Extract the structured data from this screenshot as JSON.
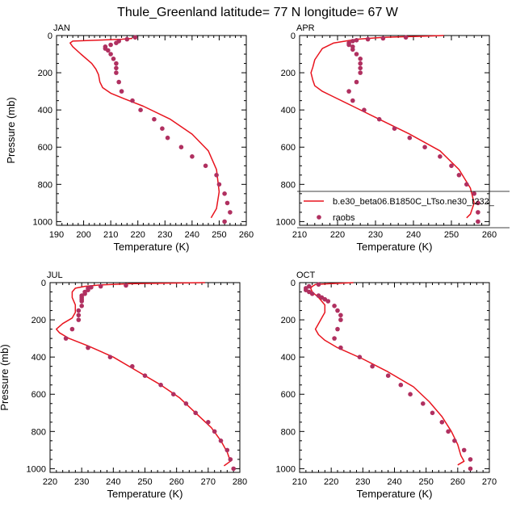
{
  "title": "Thule_Greenland  latitude= 77 N longitude= 67 W",
  "colors": {
    "model": "#e8141e",
    "obs": "#b03060",
    "axis": "#000000"
  },
  "legend": {
    "model_label": "b.e30_beta06.B1850C_LTso.ne30_t232_",
    "obs_label": "raobs",
    "placement": "lower-right of APR panel"
  },
  "chart_data": [
    {
      "type": "line",
      "panel": "JAN",
      "xlabel": "Temperature (K)",
      "ylabel": "Pressure (mb)",
      "xlim": [
        190,
        260
      ],
      "ylim": [
        1000,
        0
      ],
      "xticks": [
        190,
        200,
        210,
        220,
        230,
        240,
        250,
        260
      ],
      "yticks": [
        0,
        200,
        400,
        600,
        800,
        1000
      ],
      "series": [
        {
          "kind": "model",
          "points": [
            [
              218,
              15
            ],
            [
              214,
              20
            ],
            [
              205,
              25
            ],
            [
              196,
              30
            ],
            [
              195,
              40
            ],
            [
              196,
              60
            ],
            [
              199,
              100
            ],
            [
              203,
              150
            ],
            [
              204.5,
              180
            ],
            [
              205.5,
              210
            ],
            [
              206,
              250
            ],
            [
              207,
              280
            ],
            [
              210,
              310
            ],
            [
              215,
              340
            ],
            [
              222,
              380
            ],
            [
              232,
              450
            ],
            [
              240,
              530
            ],
            [
              246,
              620
            ],
            [
              249,
              720
            ],
            [
              250,
              840
            ],
            [
              249,
              930
            ],
            [
              247,
              980
            ]
          ]
        },
        {
          "kind": "obs",
          "points": [
            [
              219,
              10
            ],
            [
              216,
              20
            ],
            [
              213,
              30
            ],
            [
              212,
              40
            ],
            [
              210,
              50
            ],
            [
              208,
              60
            ],
            [
              208,
              70
            ],
            [
              209,
              80
            ],
            [
              210,
              100
            ],
            [
              211,
              125
            ],
            [
              212,
              150
            ],
            [
              212,
              175
            ],
            [
              212,
              200
            ],
            [
              213,
              250
            ],
            [
              214,
              300
            ],
            [
              218,
              350
            ],
            [
              221,
              400
            ],
            [
              226,
              450
            ],
            [
              229,
              500
            ],
            [
              231,
              550
            ],
            [
              236,
              600
            ],
            [
              240,
              650
            ],
            [
              245,
              700
            ],
            [
              249,
              750
            ],
            [
              250,
              800
            ],
            [
              252,
              850
            ],
            [
              253,
              900
            ],
            [
              254,
              950
            ],
            [
              252,
              1000
            ]
          ]
        }
      ]
    },
    {
      "type": "line",
      "panel": "APR",
      "xlabel": "Temperature (K)",
      "ylabel": "",
      "xlim": [
        210,
        260
      ],
      "ylim": [
        1000,
        0
      ],
      "xticks": [
        210,
        220,
        230,
        240,
        250,
        260
      ],
      "yticks": [
        0,
        200,
        400,
        600,
        800,
        1000
      ],
      "series": [
        {
          "kind": "model",
          "points": [
            [
              248,
              0
            ],
            [
              240,
              5
            ],
            [
              232,
              10
            ],
            [
              225,
              20
            ],
            [
              219,
              40
            ],
            [
              216,
              70
            ],
            [
              215,
              100
            ],
            [
              214,
              130
            ],
            [
              213.5,
              170
            ],
            [
              213,
              200
            ],
            [
              213.5,
              240
            ],
            [
              214,
              270
            ],
            [
              216,
              300
            ],
            [
              219,
              330
            ],
            [
              224,
              380
            ],
            [
              231,
              450
            ],
            [
              239,
              530
            ],
            [
              247,
              620
            ],
            [
              252,
              720
            ],
            [
              255,
              820
            ],
            [
              256,
              900
            ],
            [
              255,
              960
            ],
            [
              254,
              980
            ]
          ]
        },
        {
          "kind": "obs",
          "points": [
            [
              238,
              10
            ],
            [
              232,
              15
            ],
            [
              228,
              20
            ],
            [
              225,
              25
            ],
            [
              224,
              30
            ],
            [
              223,
              40
            ],
            [
              223,
              50
            ],
            [
              224,
              60
            ],
            [
              224,
              75
            ],
            [
              225,
              100
            ],
            [
              226,
              125
            ],
            [
              226,
              150
            ],
            [
              226,
              175
            ],
            [
              226,
              200
            ],
            [
              225,
              250
            ],
            [
              223,
              300
            ],
            [
              224,
              350
            ],
            [
              227,
              400
            ],
            [
              231,
              450
            ],
            [
              235,
              500
            ],
            [
              239,
              550
            ],
            [
              243,
              600
            ],
            [
              247,
              650
            ],
            [
              250,
              700
            ],
            [
              252,
              750
            ],
            [
              254,
              800
            ],
            [
              256,
              850
            ],
            [
              257,
              900
            ],
            [
              257,
              950
            ],
            [
              257,
              1000
            ]
          ]
        }
      ]
    },
    {
      "type": "line",
      "panel": "JUL",
      "xlabel": "Temperature (K)",
      "ylabel": "Pressure (mb)",
      "xlim": [
        220,
        280
      ],
      "ylim": [
        1000,
        0
      ],
      "xticks": [
        220,
        230,
        240,
        250,
        260,
        270,
        280
      ],
      "yticks": [
        0,
        200,
        400,
        600,
        800,
        1000
      ],
      "series": [
        {
          "kind": "model",
          "points": [
            [
              269,
              0
            ],
            [
              255,
              3
            ],
            [
              245,
              6
            ],
            [
              236,
              12
            ],
            [
              231,
              20
            ],
            [
              228,
              30
            ],
            [
              227,
              50
            ],
            [
              227,
              80
            ],
            [
              228,
              120
            ],
            [
              228,
              160
            ],
            [
              227,
              190
            ],
            [
              224,
              220
            ],
            [
              222,
              250
            ],
            [
              223,
              270
            ],
            [
              226,
              300
            ],
            [
              232,
              340
            ],
            [
              240,
              400
            ],
            [
              248,
              480
            ],
            [
              255,
              550
            ],
            [
              261,
              620
            ],
            [
              266,
              700
            ],
            [
              271,
              780
            ],
            [
              274,
              850
            ],
            [
              276,
              910
            ],
            [
              277,
              960
            ],
            [
              275,
              985
            ]
          ]
        },
        {
          "kind": "obs",
          "points": [
            [
              244,
              15
            ],
            [
              236,
              20
            ],
            [
              233,
              25
            ],
            [
              232,
              30
            ],
            [
              232,
              40
            ],
            [
              231,
              50
            ],
            [
              231,
              60
            ],
            [
              230,
              70
            ],
            [
              230,
              80
            ],
            [
              230,
              90
            ],
            [
              230,
              100
            ],
            [
              230,
              125
            ],
            [
              229,
              150
            ],
            [
              229,
              175
            ],
            [
              229,
              200
            ],
            [
              227,
              250
            ],
            [
              225,
              300
            ],
            [
              232,
              350
            ],
            [
              239,
              400
            ],
            [
              246,
              450
            ],
            [
              250,
              500
            ],
            [
              255,
              550
            ],
            [
              259,
              600
            ],
            [
              263,
              650
            ],
            [
              266,
              700
            ],
            [
              270,
              750
            ],
            [
              272,
              800
            ],
            [
              274,
              850
            ],
            [
              276,
              900
            ],
            [
              277,
              950
            ],
            [
              278,
              1000
            ]
          ]
        }
      ]
    },
    {
      "type": "line",
      "panel": "OCT",
      "xlabel": "Temperature (K)",
      "ylabel": "",
      "xlim": [
        210,
        270
      ],
      "ylim": [
        1000,
        0
      ],
      "xticks": [
        210,
        220,
        230,
        240,
        250,
        260,
        270
      ],
      "yticks": [
        0,
        200,
        400,
        600,
        800,
        1000
      ],
      "series": [
        {
          "kind": "model",
          "points": [
            [
              227,
              0
            ],
            [
              220,
              5
            ],
            [
              215,
              10
            ],
            [
              214,
              20
            ],
            [
              213.5,
              30
            ],
            [
              214,
              50
            ],
            [
              216,
              80
            ],
            [
              218,
              120
            ],
            [
              218,
              160
            ],
            [
              217,
              190
            ],
            [
              216,
              220
            ],
            [
              215,
              250
            ],
            [
              216,
              280
            ],
            [
              218,
              310
            ],
            [
              222,
              350
            ],
            [
              230,
              410
            ],
            [
              238,
              480
            ],
            [
              246,
              560
            ],
            [
              251,
              640
            ],
            [
              255,
              720
            ],
            [
              258,
              800
            ],
            [
              260,
              870
            ],
            [
              261,
              930
            ],
            [
              262,
              960
            ],
            [
              260,
              980
            ]
          ]
        },
        {
          "kind": "obs",
          "points": [
            [
              216,
              10
            ],
            [
              213,
              20
            ],
            [
              212,
              30
            ],
            [
              212,
              40
            ],
            [
              213,
              50
            ],
            [
              214,
              60
            ],
            [
              216,
              70
            ],
            [
              217,
              80
            ],
            [
              218,
              90
            ],
            [
              219,
              100
            ],
            [
              221,
              125
            ],
            [
              222,
              150
            ],
            [
              223,
              175
            ],
            [
              223,
              200
            ],
            [
              222,
              250
            ],
            [
              221,
              300
            ],
            [
              223,
              350
            ],
            [
              229,
              400
            ],
            [
              233,
              450
            ],
            [
              238,
              500
            ],
            [
              242,
              550
            ],
            [
              245,
              600
            ],
            [
              249,
              650
            ],
            [
              252,
              700
            ],
            [
              255,
              750
            ],
            [
              257,
              800
            ],
            [
              259,
              850
            ],
            [
              262,
              900
            ],
            [
              264,
              950
            ],
            [
              264,
              1000
            ]
          ]
        }
      ]
    }
  ]
}
